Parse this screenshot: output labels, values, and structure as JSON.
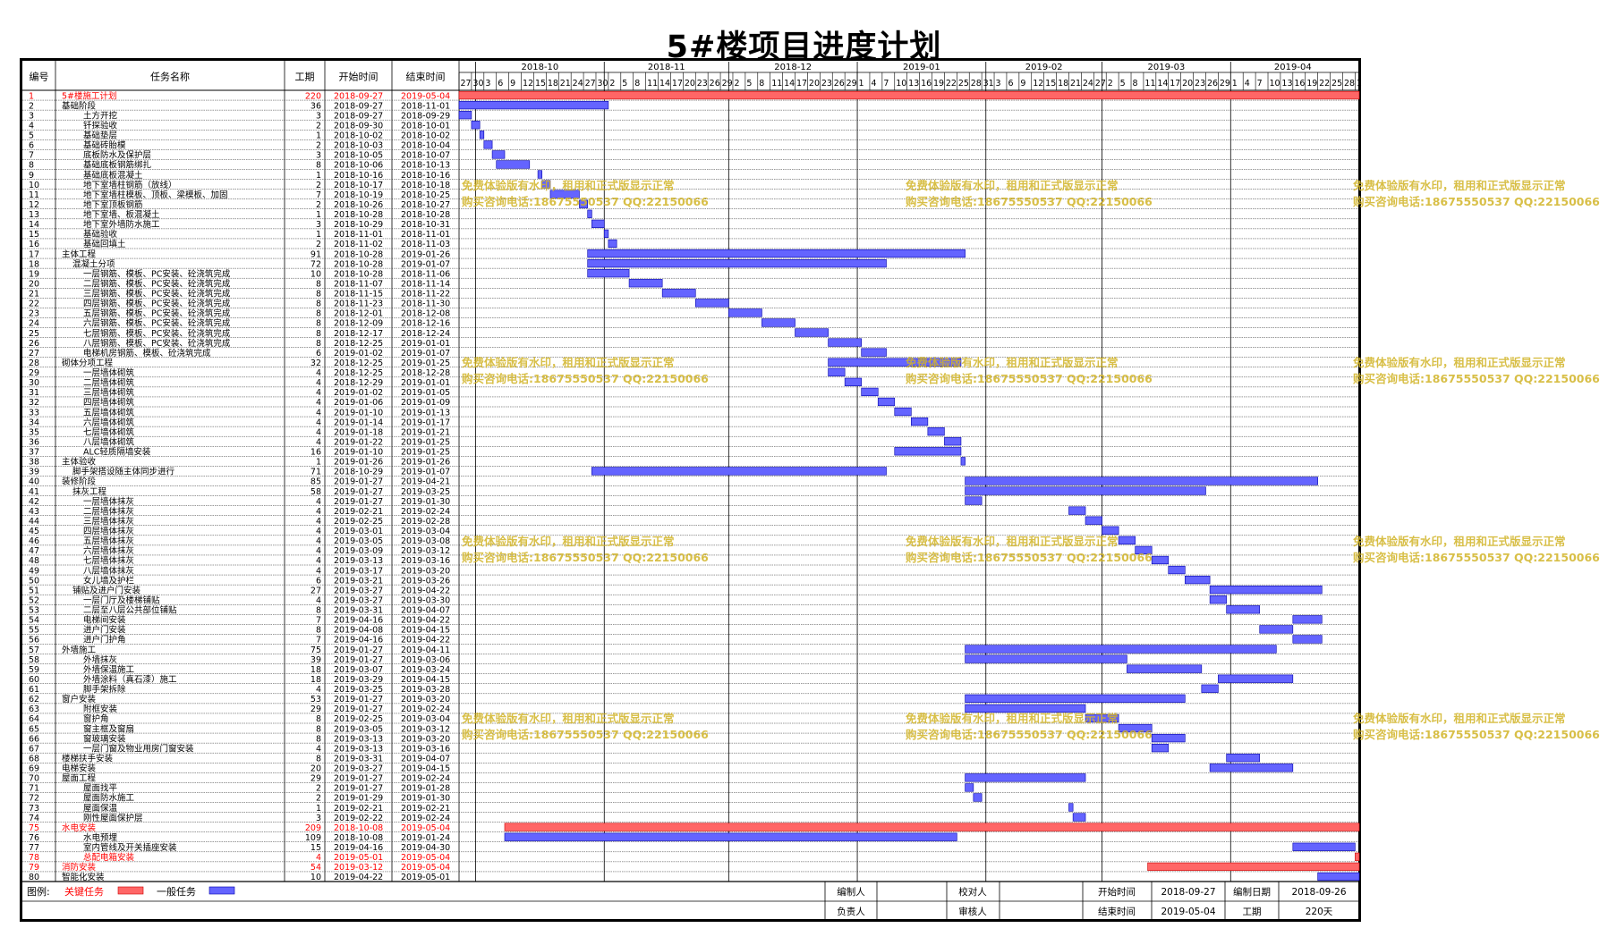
{
  "title": "5#楼项目进度计划",
  "columns": {
    "no": "编号",
    "name": "任务名称",
    "dur": "工期",
    "start": "开始时间",
    "end": "结束时间"
  },
  "chart_data": {
    "type": "gantt",
    "timeline_start": "2018-09-27",
    "timeline_end": "2019-05-01",
    "months": [
      "2018-10",
      "2018-11",
      "2018-12",
      "2019-01",
      "2019-02",
      "2019-03",
      "2019-04"
    ],
    "day_ticks": [
      27,
      30,
      3,
      6,
      9,
      12,
      15,
      18,
      21,
      24,
      27,
      30,
      2,
      5,
      8,
      11,
      14,
      17,
      20,
      23,
      26,
      29,
      2,
      5,
      8,
      11,
      14,
      17,
      20,
      23,
      26,
      29,
      1,
      4,
      7,
      10,
      13,
      16,
      19,
      22,
      25,
      28,
      31,
      3,
      6,
      9,
      12,
      15,
      18,
      21,
      24,
      27,
      2,
      5,
      8,
      11,
      14,
      17,
      20,
      23,
      26,
      29,
      1,
      4,
      7,
      10,
      13,
      16,
      19,
      22,
      25,
      28,
      1
    ],
    "tasks": [
      {
        "id": "1",
        "name": "5#楼施工计划",
        "indent": 0,
        "dur": "220",
        "start": "2018-09-27",
        "end": "2019-05-04",
        "critical": true
      },
      {
        "id": "2",
        "name": "基础阶段",
        "indent": 0,
        "dur": "36",
        "start": "2018-09-27",
        "end": "2018-11-01"
      },
      {
        "id": "3",
        "name": "土方开挖",
        "indent": 2,
        "dur": "3",
        "start": "2018-09-27",
        "end": "2018-09-29"
      },
      {
        "id": "4",
        "name": "钎探验收",
        "indent": 2,
        "dur": "2",
        "start": "2018-09-30",
        "end": "2018-10-01"
      },
      {
        "id": "5",
        "name": "基础垫层",
        "indent": 2,
        "dur": "1",
        "start": "2018-10-02",
        "end": "2018-10-02"
      },
      {
        "id": "6",
        "name": "基础砖胎模",
        "indent": 2,
        "dur": "2",
        "start": "2018-10-03",
        "end": "2018-10-04"
      },
      {
        "id": "7",
        "name": "底板防水及保护层",
        "indent": 2,
        "dur": "3",
        "start": "2018-10-05",
        "end": "2018-10-07"
      },
      {
        "id": "8",
        "name": "基础底板钢筋绑扎",
        "indent": 2,
        "dur": "8",
        "start": "2018-10-06",
        "end": "2018-10-13"
      },
      {
        "id": "9",
        "name": "基础底板混凝土",
        "indent": 2,
        "dur": "1",
        "start": "2018-10-16",
        "end": "2018-10-16"
      },
      {
        "id": "10",
        "name": "地下室墙柱钢筋（放线）",
        "indent": 2,
        "dur": "2",
        "start": "2018-10-17",
        "end": "2018-10-18"
      },
      {
        "id": "11",
        "name": "地下室墙柱模板、顶板、梁模板、加固",
        "indent": 2,
        "dur": "7",
        "start": "2018-10-19",
        "end": "2018-10-25"
      },
      {
        "id": "12",
        "name": "地下室顶板钢筋",
        "indent": 2,
        "dur": "2",
        "start": "2018-10-26",
        "end": "2018-10-27"
      },
      {
        "id": "13",
        "name": "地下室墙、板混凝土",
        "indent": 2,
        "dur": "1",
        "start": "2018-10-28",
        "end": "2018-10-28"
      },
      {
        "id": "14",
        "name": "地下室外墙防水施工",
        "indent": 2,
        "dur": "3",
        "start": "2018-10-29",
        "end": "2018-10-31"
      },
      {
        "id": "15",
        "name": "基础验收",
        "indent": 2,
        "dur": "1",
        "start": "2018-11-01",
        "end": "2018-11-01"
      },
      {
        "id": "16",
        "name": "基础回填土",
        "indent": 2,
        "dur": "2",
        "start": "2018-11-02",
        "end": "2018-11-03"
      },
      {
        "id": "17",
        "name": "主体工程",
        "indent": 0,
        "dur": "91",
        "start": "2018-10-28",
        "end": "2019-01-26"
      },
      {
        "id": "18",
        "name": "混凝土分项",
        "indent": 1,
        "dur": "72",
        "start": "2018-10-28",
        "end": "2019-01-07"
      },
      {
        "id": "19",
        "name": "一层钢筋、模板、PC安装、砼浇筑完成",
        "indent": 2,
        "dur": "10",
        "start": "2018-10-28",
        "end": "2018-11-06"
      },
      {
        "id": "20",
        "name": "二层钢筋、模板、PC安装、砼浇筑完成",
        "indent": 2,
        "dur": "8",
        "start": "2018-11-07",
        "end": "2018-11-14"
      },
      {
        "id": "21",
        "name": "三层钢筋、模板、PC安装、砼浇筑完成",
        "indent": 2,
        "dur": "8",
        "start": "2018-11-15",
        "end": "2018-11-22"
      },
      {
        "id": "22",
        "name": "四层钢筋、模板、PC安装、砼浇筑完成",
        "indent": 2,
        "dur": "8",
        "start": "2018-11-23",
        "end": "2018-11-30"
      },
      {
        "id": "23",
        "name": "五层钢筋、模板、PC安装、砼浇筑完成",
        "indent": 2,
        "dur": "8",
        "start": "2018-12-01",
        "end": "2018-12-08"
      },
      {
        "id": "24",
        "name": "六层钢筋、模板、PC安装、砼浇筑完成",
        "indent": 2,
        "dur": "8",
        "start": "2018-12-09",
        "end": "2018-12-16"
      },
      {
        "id": "25",
        "name": "七层钢筋、模板、PC安装、砼浇筑完成",
        "indent": 2,
        "dur": "8",
        "start": "2018-12-17",
        "end": "2018-12-24"
      },
      {
        "id": "26",
        "name": "八层钢筋、模板、PC安装、砼浇筑完成",
        "indent": 2,
        "dur": "8",
        "start": "2018-12-25",
        "end": "2019-01-01"
      },
      {
        "id": "27",
        "name": "电梯机房钢筋、模板、砼浇筑完成",
        "indent": 2,
        "dur": "6",
        "start": "2019-01-02",
        "end": "2019-01-07"
      },
      {
        "id": "28",
        "name": "砌体分项工程",
        "indent": 0,
        "dur": "32",
        "start": "2018-12-25",
        "end": "2019-01-25"
      },
      {
        "id": "29",
        "name": "一层墙体砌筑",
        "indent": 2,
        "dur": "4",
        "start": "2018-12-25",
        "end": "2018-12-28"
      },
      {
        "id": "30",
        "name": "二层墙体砌筑",
        "indent": 2,
        "dur": "4",
        "start": "2018-12-29",
        "end": "2019-01-01"
      },
      {
        "id": "31",
        "name": "三层墙体砌筑",
        "indent": 2,
        "dur": "4",
        "start": "2019-01-02",
        "end": "2019-01-05"
      },
      {
        "id": "32",
        "name": "四层墙体砌筑",
        "indent": 2,
        "dur": "4",
        "start": "2019-01-06",
        "end": "2019-01-09"
      },
      {
        "id": "33",
        "name": "五层墙体砌筑",
        "indent": 2,
        "dur": "4",
        "start": "2019-01-10",
        "end": "2019-01-13"
      },
      {
        "id": "34",
        "name": "六层墙体砌筑",
        "indent": 2,
        "dur": "4",
        "start": "2019-01-14",
        "end": "2019-01-17"
      },
      {
        "id": "35",
        "name": "七层墙体砌筑",
        "indent": 2,
        "dur": "4",
        "start": "2019-01-18",
        "end": "2019-01-21"
      },
      {
        "id": "36",
        "name": "八层墙体砌筑",
        "indent": 2,
        "dur": "4",
        "start": "2019-01-22",
        "end": "2019-01-25"
      },
      {
        "id": "37",
        "name": "ALC轻质隔墙安装",
        "indent": 2,
        "dur": "16",
        "start": "2019-01-10",
        "end": "2019-01-25"
      },
      {
        "id": "38",
        "name": "主体验收",
        "indent": 0,
        "dur": "1",
        "start": "2019-01-26",
        "end": "2019-01-26"
      },
      {
        "id": "39",
        "name": "脚手架搭设随主体同步进行",
        "indent": 1,
        "dur": "71",
        "start": "2018-10-29",
        "end": "2019-01-07"
      },
      {
        "id": "40",
        "name": "装修阶段",
        "indent": 0,
        "dur": "85",
        "start": "2019-01-27",
        "end": "2019-04-21"
      },
      {
        "id": "41",
        "name": "抹灰工程",
        "indent": 1,
        "dur": "58",
        "start": "2019-01-27",
        "end": "2019-03-25"
      },
      {
        "id": "42",
        "name": "一层墙体抹灰",
        "indent": 2,
        "dur": "4",
        "start": "2019-01-27",
        "end": "2019-01-30"
      },
      {
        "id": "43",
        "name": "二层墙体抹灰",
        "indent": 2,
        "dur": "4",
        "start": "2019-02-21",
        "end": "2019-02-24"
      },
      {
        "id": "44",
        "name": "三层墙体抹灰",
        "indent": 2,
        "dur": "4",
        "start": "2019-02-25",
        "end": "2019-02-28"
      },
      {
        "id": "45",
        "name": "四层墙体抹灰",
        "indent": 2,
        "dur": "4",
        "start": "2019-03-01",
        "end": "2019-03-04"
      },
      {
        "id": "46",
        "name": "五层墙体抹灰",
        "indent": 2,
        "dur": "4",
        "start": "2019-03-05",
        "end": "2019-03-08"
      },
      {
        "id": "47",
        "name": "六层墙体抹灰",
        "indent": 2,
        "dur": "4",
        "start": "2019-03-09",
        "end": "2019-03-12"
      },
      {
        "id": "48",
        "name": "七层墙体抹灰",
        "indent": 2,
        "dur": "4",
        "start": "2019-03-13",
        "end": "2019-03-16"
      },
      {
        "id": "49",
        "name": "八层墙体抹灰",
        "indent": 2,
        "dur": "4",
        "start": "2019-03-17",
        "end": "2019-03-20"
      },
      {
        "id": "50",
        "name": "女儿墙及护栏",
        "indent": 2,
        "dur": "6",
        "start": "2019-03-21",
        "end": "2019-03-26"
      },
      {
        "id": "51",
        "name": "铺贴及进户门安装",
        "indent": 1,
        "dur": "27",
        "start": "2019-03-27",
        "end": "2019-04-22"
      },
      {
        "id": "52",
        "name": "一层门厅及楼梯铺贴",
        "indent": 2,
        "dur": "4",
        "start": "2019-03-27",
        "end": "2019-03-30"
      },
      {
        "id": "53",
        "name": "二层至八层公共部位铺贴",
        "indent": 2,
        "dur": "8",
        "start": "2019-03-31",
        "end": "2019-04-07"
      },
      {
        "id": "54",
        "name": "电梯间安装",
        "indent": 2,
        "dur": "7",
        "start": "2019-04-16",
        "end": "2019-04-22"
      },
      {
        "id": "55",
        "name": "进户门安装",
        "indent": 2,
        "dur": "8",
        "start": "2019-04-08",
        "end": "2019-04-15"
      },
      {
        "id": "56",
        "name": "进户门护角",
        "indent": 2,
        "dur": "7",
        "start": "2019-04-16",
        "end": "2019-04-22"
      },
      {
        "id": "57",
        "name": "外墙施工",
        "indent": 0,
        "dur": "75",
        "start": "2019-01-27",
        "end": "2019-04-11"
      },
      {
        "id": "58",
        "name": "外墙抹灰",
        "indent": 2,
        "dur": "39",
        "start": "2019-01-27",
        "end": "2019-03-06"
      },
      {
        "id": "59",
        "name": "外墙保温施工",
        "indent": 2,
        "dur": "18",
        "start": "2019-03-07",
        "end": "2019-03-24"
      },
      {
        "id": "60",
        "name": "外墙涂料（真石漆）施工",
        "indent": 2,
        "dur": "18",
        "start": "2019-03-29",
        "end": "2019-04-15"
      },
      {
        "id": "61",
        "name": "脚手架拆除",
        "indent": 2,
        "dur": "4",
        "start": "2019-03-25",
        "end": "2019-03-28"
      },
      {
        "id": "62",
        "name": "窗户安装",
        "indent": 0,
        "dur": "53",
        "start": "2019-01-27",
        "end": "2019-03-20"
      },
      {
        "id": "63",
        "name": "附框安装",
        "indent": 2,
        "dur": "29",
        "start": "2019-01-27",
        "end": "2019-02-24"
      },
      {
        "id": "64",
        "name": "窗护角",
        "indent": 2,
        "dur": "8",
        "start": "2019-02-25",
        "end": "2019-03-04"
      },
      {
        "id": "65",
        "name": "窗主框及窗扇",
        "indent": 2,
        "dur": "8",
        "start": "2019-03-05",
        "end": "2019-03-12"
      },
      {
        "id": "66",
        "name": "窗玻璃安装",
        "indent": 2,
        "dur": "8",
        "start": "2019-03-13",
        "end": "2019-03-20"
      },
      {
        "id": "67",
        "name": "一层门窗及物业用房门窗安装",
        "indent": 2,
        "dur": "4",
        "start": "2019-03-13",
        "end": "2019-03-16"
      },
      {
        "id": "68",
        "name": "楼梯扶手安装",
        "indent": 0,
        "dur": "8",
        "start": "2019-03-31",
        "end": "2019-04-07"
      },
      {
        "id": "69",
        "name": "电梯安装",
        "indent": 0,
        "dur": "20",
        "start": "2019-03-27",
        "end": "2019-04-15"
      },
      {
        "id": "70",
        "name": "屋面工程",
        "indent": 0,
        "dur": "29",
        "start": "2019-01-27",
        "end": "2019-02-24"
      },
      {
        "id": "71",
        "name": "屋面找平",
        "indent": 2,
        "dur": "2",
        "start": "2019-01-27",
        "end": "2019-01-28"
      },
      {
        "id": "72",
        "name": "屋面防水施工",
        "indent": 2,
        "dur": "2",
        "start": "2019-01-29",
        "end": "2019-01-30"
      },
      {
        "id": "73",
        "name": "屋面保温",
        "indent": 2,
        "dur": "1",
        "start": "2019-02-21",
        "end": "2019-02-21"
      },
      {
        "id": "74",
        "name": "刚性屋面保护层",
        "indent": 2,
        "dur": "3",
        "start": "2019-02-22",
        "end": "2019-02-24"
      },
      {
        "id": "75",
        "name": "水电安装",
        "indent": 0,
        "dur": "209",
        "start": "2018-10-08",
        "end": "2019-05-04",
        "critical": true
      },
      {
        "id": "76",
        "name": "水电预埋",
        "indent": 2,
        "dur": "109",
        "start": "2018-10-08",
        "end": "2019-01-24"
      },
      {
        "id": "77",
        "name": "室内管线及开关插座安装",
        "indent": 2,
        "dur": "15",
        "start": "2019-04-16",
        "end": "2019-04-30"
      },
      {
        "id": "78",
        "name": "总配电箱安装",
        "indent": 2,
        "dur": "4",
        "start": "2019-05-01",
        "end": "2019-05-04",
        "critical": true
      },
      {
        "id": "79",
        "name": "消防安装",
        "indent": 0,
        "dur": "54",
        "start": "2019-03-12",
        "end": "2019-05-04",
        "critical": true
      },
      {
        "id": "80",
        "name": "智能化安装",
        "indent": 0,
        "dur": "10",
        "start": "2019-04-22",
        "end": "2019-05-01"
      }
    ]
  },
  "legend": {
    "label": "图例:",
    "critical": "关键任务",
    "normal": "一般任务"
  },
  "footer": {
    "editor_label": "编制人",
    "editor": "",
    "checker_label": "校对人",
    "checker": "",
    "start_label": "开始时间",
    "start": "2018-09-27",
    "date_label": "编制日期",
    "date": "2018-09-26",
    "owner_label": "负责人",
    "owner": "",
    "reviewer_label": "审核人",
    "reviewer": "",
    "end_label": "结束时间",
    "end": "2019-05-04",
    "duration_label": "工期",
    "duration": "220天"
  },
  "watermark": {
    "line1": "免费体验版有水印，租用和正式版显示正常",
    "line2": "购买咨询电话:18675550537 QQ:22150066"
  },
  "colors": {
    "critical": "#ff6666",
    "normal": "#6464ff",
    "critical_text": "#ff0000",
    "watermark": "#d2b428"
  }
}
